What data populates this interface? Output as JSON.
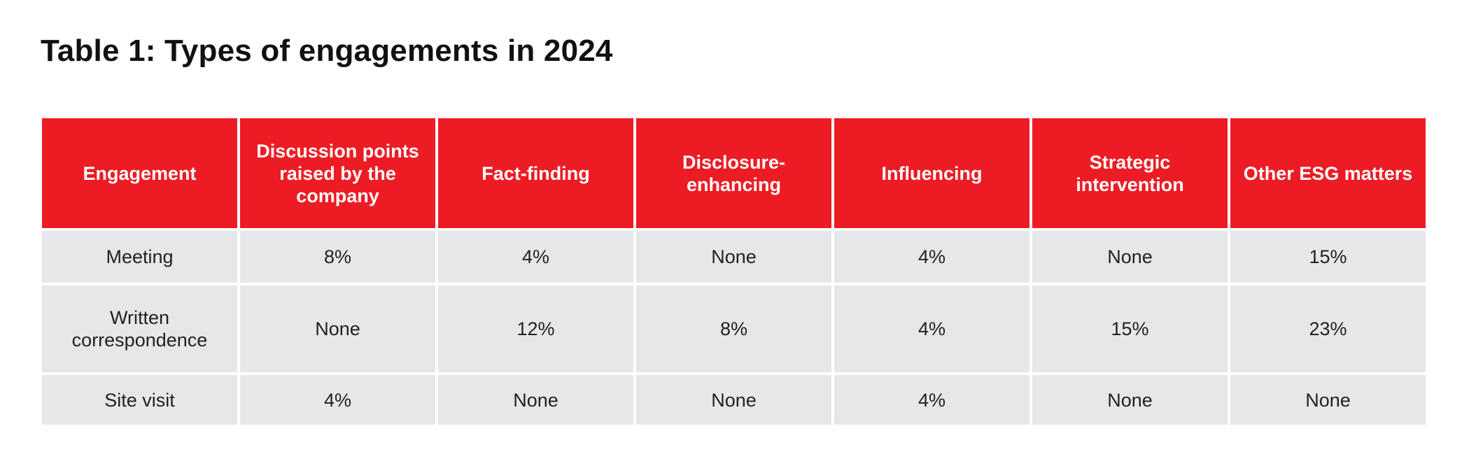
{
  "title": "Table 1: Types of engagements in 2024",
  "colors": {
    "header_bg": "#ed1c24",
    "header_text": "#ffffff",
    "cell_bg": "#e6e7e8",
    "cell_text": "#222222",
    "title_text": "#111111"
  },
  "table": {
    "headers": [
      "Engagement",
      "Discussion points raised by the company",
      "Fact-finding",
      "Disclosure-enhancing",
      "Influencing",
      "Strategic intervention",
      "Other ESG matters"
    ],
    "rows": [
      [
        "Meeting",
        "8%",
        "4%",
        "None",
        "4%",
        "None",
        "15%"
      ],
      [
        "Written correspondence",
        "None",
        "12%",
        "8%",
        "4%",
        "15%",
        "23%"
      ],
      [
        "Site visit",
        "4%",
        "None",
        "None",
        "4%",
        "None",
        "None"
      ]
    ]
  }
}
